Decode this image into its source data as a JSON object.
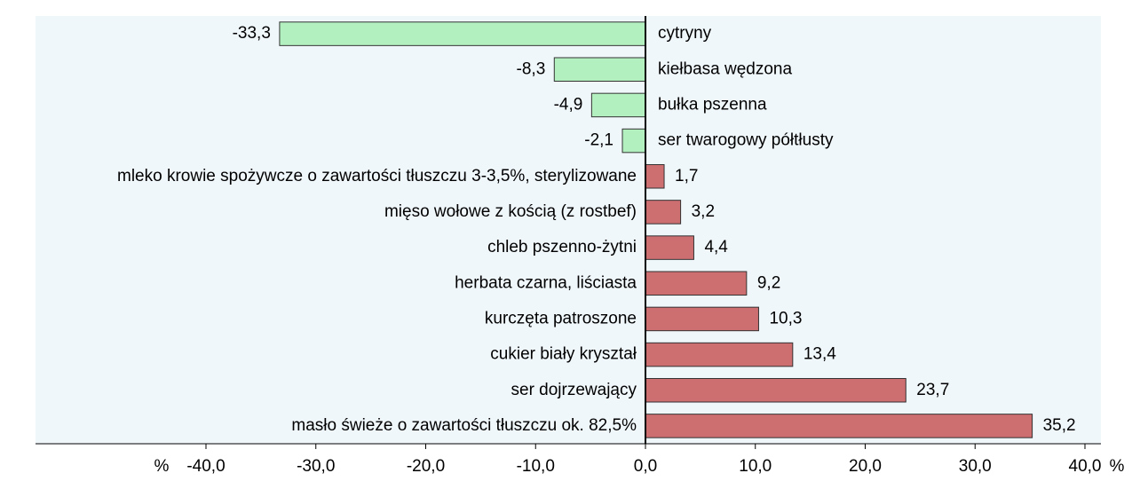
{
  "chart_data": {
    "type": "hbar",
    "categories": [
      "cytryny",
      "kiełbasa wędzona",
      "bułka pszenna",
      "ser twarogowy półtłusty",
      "mleko krowie spożywcze o zawartości tłuszczu 3-3,5%, sterylizowane",
      "mięso wołowe z kością (z rostbef)",
      "chleb pszenno-żytni",
      "herbata czarna, liściasta",
      "kurczęta patroszone",
      "cukier biały kryształ",
      "ser dojrzewający",
      "masło świeże o zawartości tłuszczu ok. 82,5%"
    ],
    "values": [
      -33.3,
      -8.3,
      -4.9,
      -2.1,
      1.7,
      3.2,
      4.4,
      9.2,
      10.3,
      13.4,
      23.7,
      35.2
    ],
    "value_labels": [
      "-33,3",
      "-8,3",
      "-4,9",
      "-2,1",
      "1,7",
      "3,2",
      "4,4",
      "9,2",
      "10,3",
      "13,4",
      "23,7",
      "35,2"
    ],
    "negative_color": "#b3f0c0",
    "positive_color": "#cd6e70",
    "background": "#f0f7fb",
    "xlabel": "%",
    "xlim": [
      -40,
      40
    ],
    "xticks": [
      {
        "value": -40,
        "label": "-40,0"
      },
      {
        "value": -30,
        "label": "-30,0"
      },
      {
        "value": -20,
        "label": "-20,0"
      },
      {
        "value": -10,
        "label": "-10,0"
      },
      {
        "value": 0,
        "label": "0,0"
      },
      {
        "value": 10,
        "label": "10,0"
      },
      {
        "value": 20,
        "label": "20,0"
      },
      {
        "value": 30,
        "label": "30,0"
      },
      {
        "value": 40,
        "label": "40,0"
      }
    ]
  }
}
